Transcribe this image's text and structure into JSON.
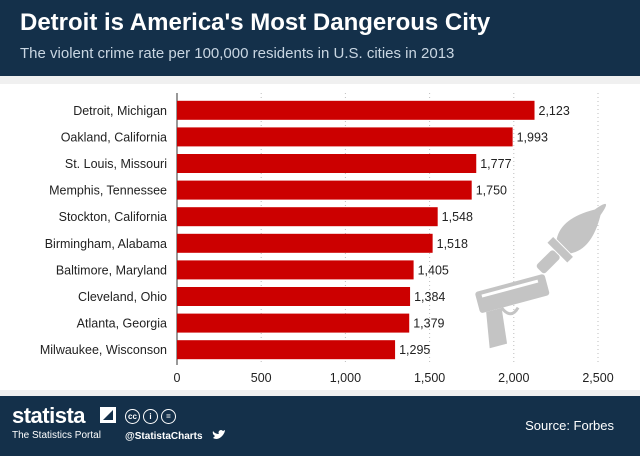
{
  "header": {
    "title": "Detroit is America's Most Dangerous City",
    "subtitle": "The violent crime rate per 100,000 residents in U.S. cities in 2013"
  },
  "footer": {
    "brand": "statista",
    "tagline": "The Statistics Portal",
    "handle": "@StatistaCharts",
    "source": "Source: Forbes",
    "cc_icons": [
      "cc",
      "i",
      "="
    ]
  },
  "chart_data": {
    "type": "bar",
    "orientation": "horizontal",
    "title": "Detroit is America's Most Dangerous City",
    "subtitle": "The violent crime rate per 100,000 residents in U.S. cities in 2013",
    "categories": [
      "Detroit, Michigan",
      "Oakland, California",
      "St. Louis, Missouri",
      "Memphis, Tennessee",
      "Stockton, California",
      "Birmingham, Alabama",
      "Baltimore, Maryland",
      "Cleveland, Ohio",
      "Atlanta, Georgia",
      "Milwaukee, Wisconson"
    ],
    "values": [
      2123,
      1993,
      1777,
      1750,
      1548,
      1518,
      1405,
      1384,
      1379,
      1295
    ],
    "value_labels": [
      "2,123",
      "1,993",
      "1,777",
      "1,750",
      "1,548",
      "1,518",
      "1,405",
      "1,384",
      "1,379",
      "1,295"
    ],
    "xlim": [
      0,
      2500
    ],
    "xticks": [
      0,
      500,
      1000,
      1500,
      2000,
      2500
    ],
    "xtick_labels": [
      "0",
      "500",
      "1,000",
      "1,500",
      "2,000",
      "2,500"
    ],
    "grid": true,
    "bar_color": "#cc0000"
  },
  "colors": {
    "header_bg": "#14304a",
    "bar": "#cc0000",
    "illustration": "#c4c4c4"
  }
}
